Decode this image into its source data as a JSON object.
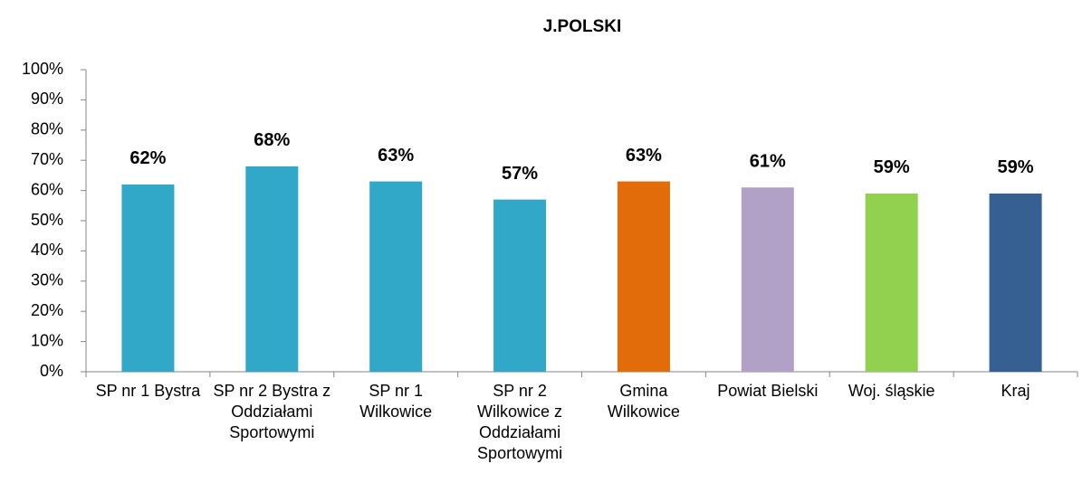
{
  "chart_data": {
    "type": "bar",
    "title": "J.POLSKI",
    "categories": [
      "SP nr 1 Bystra",
      "SP nr 2 Bystra z Oddziałami Sportowymi",
      "SP nr 1 Wilkowice",
      "SP nr 2 Wilkowice z Oddziałami Sportowymi",
      "Gmina Wilkowice",
      "Powiat Bielski",
      "Woj. śląskie",
      "Kraj"
    ],
    "values": [
      62,
      68,
      63,
      57,
      63,
      61,
      59,
      59
    ],
    "value_labels": [
      "62%",
      "68%",
      "63%",
      "57%",
      "63%",
      "61%",
      "59%",
      "59%"
    ],
    "colors": [
      "#31a8c8",
      "#31a8c8",
      "#31a8c8",
      "#31a8c8",
      "#e36c0a",
      "#b2a1c7",
      "#92d050",
      "#366092"
    ],
    "ylim": [
      0,
      100
    ],
    "yticks": [
      {
        "value": 0,
        "label": "0%"
      },
      {
        "value": 10,
        "label": "10%"
      },
      {
        "value": 20,
        "label": "20%"
      },
      {
        "value": 30,
        "label": "30%"
      },
      {
        "value": 40,
        "label": "40%"
      },
      {
        "value": 50,
        "label": "50%"
      },
      {
        "value": 60,
        "label": "60%"
      },
      {
        "value": 70,
        "label": "70%"
      },
      {
        "value": 80,
        "label": "80%"
      },
      {
        "value": 90,
        "label": "90%"
      },
      {
        "value": 100,
        "label": "100%"
      }
    ]
  }
}
